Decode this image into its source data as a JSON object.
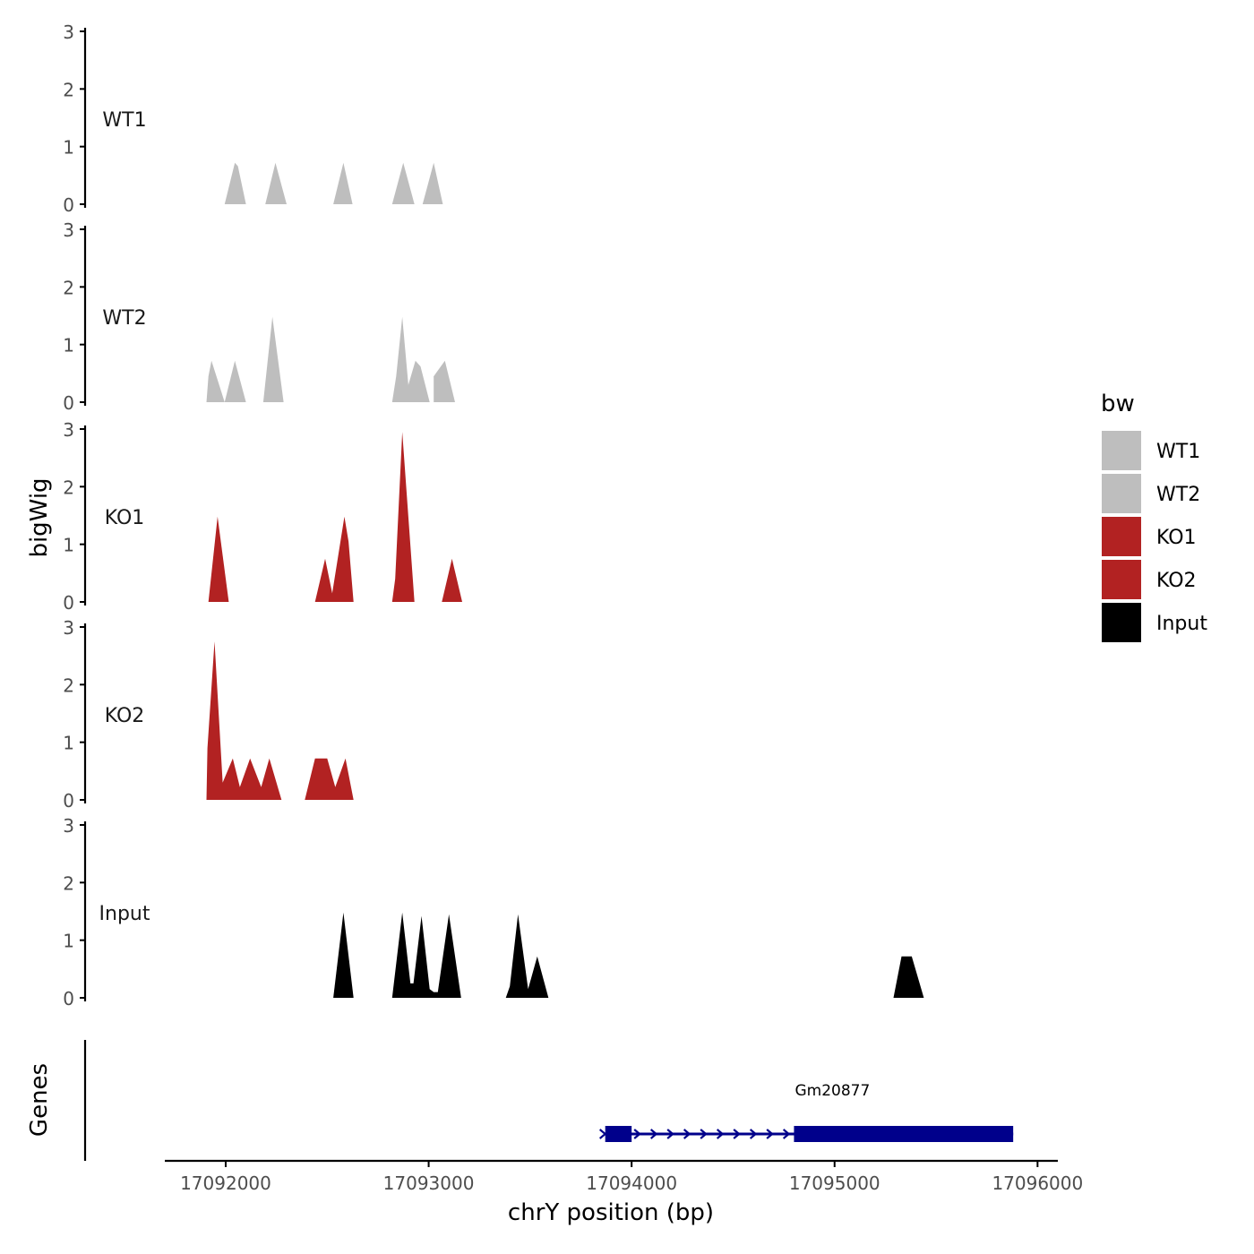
{
  "chart_data": {
    "type": "area",
    "ylabel": "bigWig",
    "xlabel": "chrY position (bp)",
    "genes_label": "Genes",
    "xlim": [
      17091700,
      17096100
    ],
    "ylim": [
      0,
      3
    ],
    "x_ticks": [
      17092000,
      17093000,
      17094000,
      17095000,
      17096000
    ],
    "x_tick_labels": [
      "17092000",
      "17093000",
      "17094000",
      "17095000",
      "17096000"
    ],
    "y_ticks": [
      0,
      1,
      2,
      3
    ],
    "y_tick_labels": [
      "0",
      "1",
      "2",
      "3"
    ],
    "legend": {
      "title": "bw",
      "position": "right",
      "entries": [
        {
          "label": "WT1",
          "color": "#BEBEBE"
        },
        {
          "label": "WT2",
          "color": "#BEBEBE"
        },
        {
          "label": "KO1",
          "color": "#B22222"
        },
        {
          "label": "KO2",
          "color": "#B22222"
        },
        {
          "label": "Input",
          "color": "#000000"
        }
      ]
    },
    "series": [
      {
        "name": "WT1",
        "color": "#BEBEBE",
        "points": [
          [
            17091995,
            0
          ],
          [
            17092045,
            0.72
          ],
          [
            17092060,
            0.66
          ],
          [
            17092100,
            0
          ],
          [
            17092195,
            0
          ],
          [
            17092245,
            0.72
          ],
          [
            17092300,
            0
          ],
          [
            17092530,
            0
          ],
          [
            17092580,
            0.72
          ],
          [
            17092625,
            0
          ],
          [
            17092820,
            0
          ],
          [
            17092875,
            0.72
          ],
          [
            17092930,
            0
          ],
          [
            17092970,
            0
          ],
          [
            17093025,
            0.72
          ],
          [
            17093070,
            0
          ]
        ]
      },
      {
        "name": "WT2",
        "color": "#BEBEBE",
        "points": [
          [
            17091905,
            0
          ],
          [
            17091915,
            0.45
          ],
          [
            17091930,
            0.72
          ],
          [
            17091995,
            0
          ],
          [
            17091995,
            0
          ],
          [
            17092045,
            0.72
          ],
          [
            17092100,
            0
          ],
          [
            17092185,
            0
          ],
          [
            17092230,
            1.48
          ],
          [
            17092285,
            0
          ],
          [
            17092820,
            0
          ],
          [
            17092840,
            0.45
          ],
          [
            17092870,
            1.48
          ],
          [
            17092900,
            0.3
          ],
          [
            17092935,
            0.72
          ],
          [
            17092960,
            0.62
          ],
          [
            17093005,
            0
          ],
          [
            17093025,
            0.45
          ],
          [
            17093080,
            0.72
          ],
          [
            17093130,
            0
          ]
        ]
      },
      {
        "name": "KO1",
        "color": "#B22222",
        "points": [
          [
            17091915,
            0
          ],
          [
            17091960,
            1.48
          ],
          [
            17092015,
            0
          ],
          [
            17092440,
            0
          ],
          [
            17092490,
            0.75
          ],
          [
            17092525,
            0.15
          ],
          [
            17092585,
            1.48
          ],
          [
            17092605,
            1.05
          ],
          [
            17092630,
            0
          ],
          [
            17092820,
            0
          ],
          [
            17092835,
            0.4
          ],
          [
            17092870,
            2.95
          ],
          [
            17092930,
            0
          ],
          [
            17093065,
            0
          ],
          [
            17093115,
            0.75
          ],
          [
            17093165,
            0
          ]
        ]
      },
      {
        "name": "KO2",
        "color": "#B22222",
        "points": [
          [
            17091905,
            0
          ],
          [
            17091910,
            0.9
          ],
          [
            17091945,
            2.75
          ],
          [
            17091985,
            0.3
          ],
          [
            17092035,
            0.72
          ],
          [
            17092070,
            0.22
          ],
          [
            17092120,
            0.72
          ],
          [
            17092175,
            0.22
          ],
          [
            17092215,
            0.72
          ],
          [
            17092275,
            0
          ],
          [
            17092390,
            0
          ],
          [
            17092440,
            0.72
          ],
          [
            17092500,
            0.72
          ],
          [
            17092540,
            0.22
          ],
          [
            17092590,
            0.72
          ],
          [
            17092630,
            0
          ]
        ]
      },
      {
        "name": "Input",
        "color": "#000000",
        "points": [
          [
            17092530,
            0
          ],
          [
            17092580,
            1.48
          ],
          [
            17092630,
            0
          ],
          [
            17092820,
            0
          ],
          [
            17092870,
            1.48
          ],
          [
            17092910,
            0.25
          ],
          [
            17092925,
            0.25
          ],
          [
            17092965,
            1.42
          ],
          [
            17093005,
            0.15
          ],
          [
            17093025,
            0.1
          ],
          [
            17093045,
            0.1
          ],
          [
            17093100,
            1.45
          ],
          [
            17093160,
            0
          ],
          [
            17093380,
            0
          ],
          [
            17093400,
            0.2
          ],
          [
            17093440,
            1.45
          ],
          [
            17093490,
            0.15
          ],
          [
            17093535,
            0.72
          ],
          [
            17093590,
            0
          ],
          [
            17095290,
            0
          ],
          [
            17095330,
            0.72
          ],
          [
            17095380,
            0.72
          ],
          [
            17095440,
            0
          ]
        ]
      }
    ],
    "genes": [
      {
        "name": "Gm20877",
        "strand": "+",
        "start": 17093870,
        "end": 17095880,
        "exons": [
          [
            17093870,
            17094000
          ],
          [
            17094800,
            17095880
          ]
        ]
      }
    ]
  }
}
